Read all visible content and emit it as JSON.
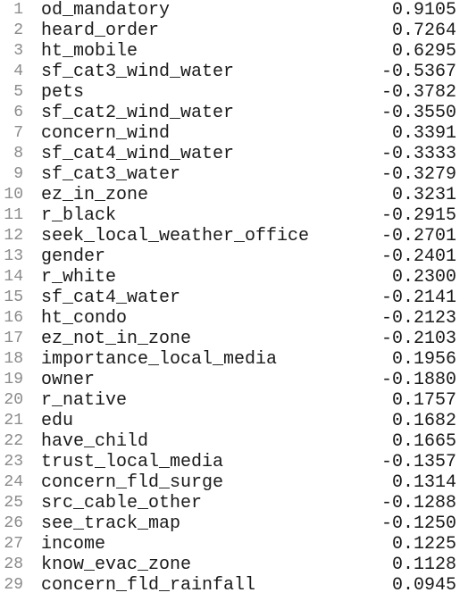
{
  "lines": [
    {
      "n": 1,
      "name": "od_mandatory",
      "value": "0.9105"
    },
    {
      "n": 2,
      "name": "heard_order",
      "value": "0.7264"
    },
    {
      "n": 3,
      "name": "ht_mobile",
      "value": "0.6295"
    },
    {
      "n": 4,
      "name": "sf_cat3_wind_water",
      "value": "-0.5367"
    },
    {
      "n": 5,
      "name": "pets",
      "value": "-0.3782"
    },
    {
      "n": 6,
      "name": "sf_cat2_wind_water",
      "value": "-0.3550"
    },
    {
      "n": 7,
      "name": "concern_wind",
      "value": "0.3391"
    },
    {
      "n": 8,
      "name": "sf_cat4_wind_water",
      "value": "-0.3333"
    },
    {
      "n": 9,
      "name": "sf_cat3_water",
      "value": "-0.3279"
    },
    {
      "n": 10,
      "name": "ez_in_zone",
      "value": "0.3231"
    },
    {
      "n": 11,
      "name": "r_black",
      "value": "-0.2915"
    },
    {
      "n": 12,
      "name": "seek_local_weather_office",
      "value": "-0.2701"
    },
    {
      "n": 13,
      "name": "gender",
      "value": "-0.2401"
    },
    {
      "n": 14,
      "name": "r_white",
      "value": "0.2300"
    },
    {
      "n": 15,
      "name": "sf_cat4_water",
      "value": "-0.2141"
    },
    {
      "n": 16,
      "name": "ht_condo",
      "value": "-0.2123"
    },
    {
      "n": 17,
      "name": "ez_not_in_zone",
      "value": "-0.2103"
    },
    {
      "n": 18,
      "name": "importance_local_media",
      "value": "0.1956"
    },
    {
      "n": 19,
      "name": "owner",
      "value": "-0.1880"
    },
    {
      "n": 20,
      "name": "r_native",
      "value": "0.1757"
    },
    {
      "n": 21,
      "name": "edu",
      "value": "0.1682"
    },
    {
      "n": 22,
      "name": "have_child",
      "value": "0.1665"
    },
    {
      "n": 23,
      "name": "trust_local_media",
      "value": "-0.1357"
    },
    {
      "n": 24,
      "name": "concern_fld_surge",
      "value": "0.1314"
    },
    {
      "n": 25,
      "name": "src_cable_other",
      "value": "-0.1288"
    },
    {
      "n": 26,
      "name": "see_track_map",
      "value": "-0.1250"
    },
    {
      "n": 27,
      "name": "income",
      "value": "0.1225"
    },
    {
      "n": 28,
      "name": "know_evac_zone",
      "value": "0.1128"
    },
    {
      "n": 29,
      "name": "concern_fld_rainfall",
      "value": "0.0945"
    }
  ]
}
